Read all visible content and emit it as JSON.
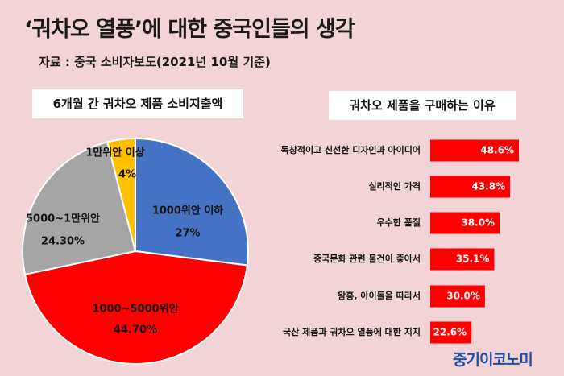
{
  "title": "‘궈차오 열풍’에 대한 중국인들의 생각",
  "source": "자료 : 중국 소비자보도(2021년 10월 기준)",
  "brand": "중기이코노미",
  "colors": {
    "background": "#f2d4d6",
    "bar": "#ff0000",
    "pie_blue": "#4472c4",
    "pie_red": "#ff0000",
    "pie_gray": "#a5a5a5",
    "pie_yellow": "#ffc000",
    "brand_blue": "#1d4ea3"
  },
  "chart_data": [
    {
      "type": "pie",
      "title": "6개월 간 궈차오 제품 소비지출액",
      "slices": [
        {
          "label": "1000위안 이하",
          "value_text": "27%",
          "value": 27,
          "color": "#4472c4"
        },
        {
          "label": "1000~5000위안",
          "value_text": "44.70%",
          "value": 44.7,
          "color": "#ff0000"
        },
        {
          "label": "5000~1만위안",
          "value_text": "24.30%",
          "value": 24.3,
          "color": "#a5a5a5"
        },
        {
          "label": "1만위안 이상",
          "value_text": "4%",
          "value": 4,
          "color": "#ffc000"
        }
      ]
    },
    {
      "type": "bar",
      "orientation": "horizontal",
      "title": "궈차오 제품을 구매하는 이유",
      "categories": [
        "독창적이고 신선한 디자인과 아이디어",
        "실리적인 가격",
        "우수한 품질",
        "중국문화 관련 물건이 좋아서",
        "왕홍, 아이돌을 따라서",
        "국산 제품과 궈차오 열풍에 대한 지지"
      ],
      "values": [
        48.6,
        43.8,
        38.0,
        35.1,
        30.0,
        22.6
      ],
      "value_labels": [
        "48.6%",
        "43.8%",
        "38.0%",
        "35.1%",
        "30.0%",
        "22.6%"
      ]
    }
  ]
}
